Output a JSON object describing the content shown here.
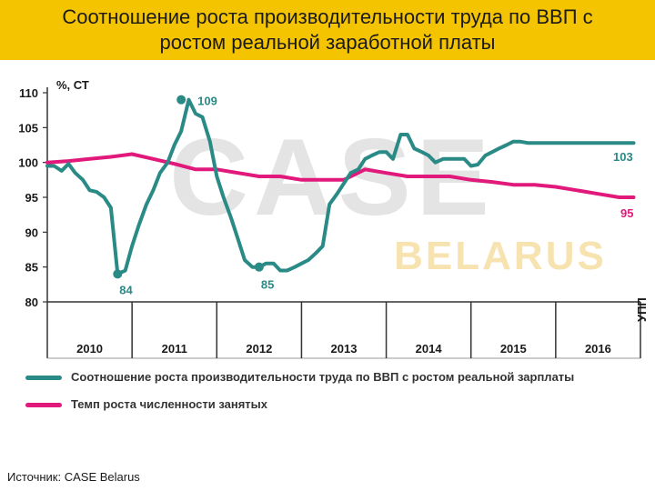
{
  "header": {
    "title_line1": "Соотношение роста производительности труда по ВВП с",
    "title_line2": "ростом реальной заработной платы"
  },
  "watermark": {
    "main": "CASE",
    "sub": "BELARUS"
  },
  "chart_data": {
    "type": "line",
    "ylabel": "%, СТ",
    "side_label": "УПП",
    "ylim": [
      80,
      110
    ],
    "yticks": [
      80,
      85,
      90,
      95,
      100,
      105,
      110
    ],
    "xlim": [
      2010.0,
      2017.0
    ],
    "year_labels": [
      "2010",
      "2011",
      "2012",
      "2013",
      "2014",
      "2015",
      "2016"
    ],
    "grid": false,
    "legend_position": "bottom",
    "series": [
      {
        "name": "Соотношение роста производительности труда по ВВП  с ростом реальной зарплаты",
        "color": "#2a8a86",
        "x": [
          2010.0,
          2010.08,
          2010.17,
          2010.25,
          2010.33,
          2010.42,
          2010.5,
          2010.58,
          2010.67,
          2010.75,
          2010.83,
          2010.92,
          2011.0,
          2011.08,
          2011.17,
          2011.25,
          2011.33,
          2011.42,
          2011.5,
          2011.58,
          2011.67,
          2011.75,
          2011.83,
          2011.92,
          2012.0,
          2012.08,
          2012.17,
          2012.25,
          2012.33,
          2012.42,
          2012.5,
          2012.58,
          2012.67,
          2012.75,
          2012.83,
          2012.92,
          2013.0,
          2013.08,
          2013.17,
          2013.25,
          2013.33,
          2013.42,
          2013.5,
          2013.58,
          2013.67,
          2013.75,
          2013.83,
          2013.92,
          2014.0,
          2014.08,
          2014.17,
          2014.25,
          2014.33,
          2014.42,
          2014.5,
          2014.58,
          2014.67,
          2014.75,
          2014.83,
          2014.92,
          2015.0,
          2015.08,
          2015.17,
          2015.25,
          2015.33,
          2015.42,
          2015.5,
          2015.58,
          2015.67,
          2015.75,
          2015.83,
          2015.92,
          2016.0,
          2016.08,
          2016.17,
          2016.25,
          2016.33,
          2016.42,
          2016.5,
          2016.58,
          2016.67,
          2016.75,
          2016.83,
          2016.92
        ],
        "values": [
          99.5,
          99.5,
          98.8,
          99.8,
          98.5,
          97.5,
          96,
          95.8,
          95,
          93.5,
          84,
          84.5,
          88,
          91,
          94,
          96,
          98.5,
          100,
          102.5,
          104.5,
          109,
          107,
          106.5,
          103,
          98,
          95,
          92,
          89,
          86,
          85,
          85,
          85.5,
          85.5,
          84.5,
          84.5,
          85,
          85.5,
          86,
          87,
          88,
          94,
          95.5,
          97,
          98.5,
          99,
          100.5,
          101,
          101.5,
          101.5,
          100.5,
          104,
          104,
          102,
          101.5,
          101,
          100,
          100.5,
          100.5,
          100.5,
          100.5,
          99.5,
          99.7,
          101,
          101.5,
          102,
          102.5,
          103,
          103,
          102.8,
          102.8,
          102.8,
          102.8,
          102.8,
          102.8,
          102.8,
          102.8,
          102.8,
          102.8,
          102.8,
          102.8,
          102.8,
          102.8,
          102.8,
          102.8
        ]
      },
      {
        "name": "Темп роста численности занятых",
        "color": "#e0197b",
        "x": [
          2010.0,
          2010.25,
          2010.5,
          2010.75,
          2011.0,
          2011.25,
          2011.5,
          2011.75,
          2012.0,
          2012.25,
          2012.5,
          2012.75,
          2013.0,
          2013.25,
          2013.5,
          2013.75,
          2014.0,
          2014.25,
          2014.5,
          2014.75,
          2015.0,
          2015.25,
          2015.5,
          2015.75,
          2016.0,
          2016.25,
          2016.5,
          2016.75,
          2016.92
        ],
        "values": [
          100,
          100.2,
          100.5,
          100.8,
          101.2,
          100.5,
          99.8,
          99,
          99,
          98.5,
          98,
          98,
          97.5,
          97.5,
          97.5,
          99,
          98.5,
          98,
          98,
          98,
          97.5,
          97.2,
          96.8,
          96.8,
          96.5,
          96,
          95.5,
          95,
          95
        ]
      }
    ],
    "annotations": [
      {
        "text": "109",
        "x": 2011.58,
        "y": 109,
        "series": 0
      },
      {
        "text": "84",
        "x": 2010.83,
        "y": 84,
        "series": 0
      },
      {
        "text": "85",
        "x": 2012.5,
        "y": 85,
        "series": 0
      },
      {
        "text": "103",
        "x": 2016.92,
        "y": 102.8,
        "series": 0
      },
      {
        "text": "95",
        "x": 2016.92,
        "y": 95,
        "series": 1
      }
    ]
  },
  "source": "Источник: CASE Belarus"
}
